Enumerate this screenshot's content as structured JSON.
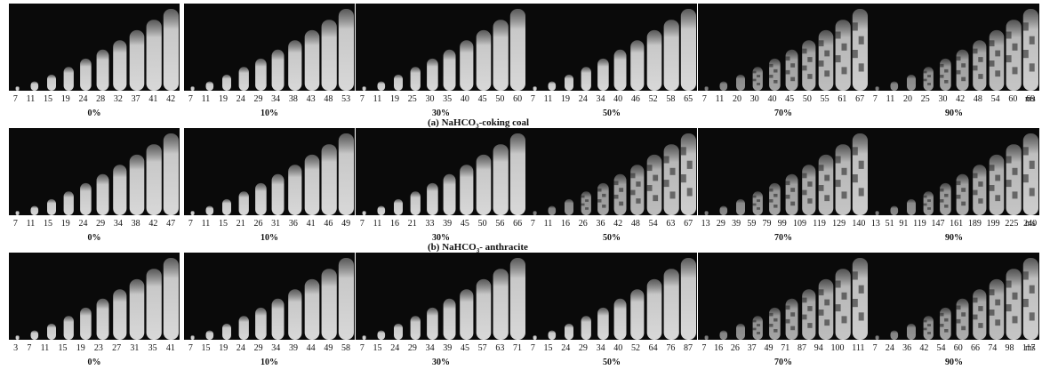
{
  "unit_label": "ms",
  "rows": [
    {
      "caption_prefix": "(a) NaHCO",
      "caption_sub": "3",
      "caption_suffix": "-coking coal",
      "panels": [
        {
          "pct": "0%",
          "ticks": [
            "7",
            "11",
            "15",
            "19",
            "24",
            "28",
            "32",
            "37",
            "41",
            "42"
          ]
        },
        {
          "pct": "10%",
          "ticks": [
            "7",
            "11",
            "19",
            "24",
            "29",
            "34",
            "38",
            "43",
            "48",
            "53"
          ]
        },
        {
          "pct": "30%",
          "ticks": [
            "7",
            "11",
            "19",
            "25",
            "30",
            "35",
            "40",
            "45",
            "50",
            "60"
          ]
        },
        {
          "pct": "50%",
          "ticks": [
            "7",
            "11",
            "19",
            "24",
            "34",
            "40",
            "46",
            "52",
            "58",
            "65"
          ]
        },
        {
          "pct": "70%",
          "ticks": [
            "7",
            "11",
            "20",
            "30",
            "40",
            "45",
            "50",
            "55",
            "61",
            "67"
          ]
        },
        {
          "pct": "90%",
          "ticks": [
            "7",
            "11",
            "20",
            "25",
            "30",
            "42",
            "48",
            "54",
            "60",
            "69"
          ]
        }
      ]
    },
    {
      "caption_prefix": "(b) NaHCO",
      "caption_sub": "3",
      "caption_suffix": "- anthracite",
      "panels": [
        {
          "pct": "0%",
          "ticks": [
            "7",
            "11",
            "15",
            "19",
            "24",
            "29",
            "34",
            "38",
            "42",
            "47"
          ]
        },
        {
          "pct": "10%",
          "ticks": [
            "7",
            "11",
            "15",
            "21",
            "26",
            "31",
            "36",
            "41",
            "46",
            "49"
          ]
        },
        {
          "pct": "30%",
          "ticks": [
            "7",
            "11",
            "16",
            "21",
            "33",
            "39",
            "45",
            "50",
            "56",
            "66"
          ]
        },
        {
          "pct": "50%",
          "ticks": [
            "7",
            "11",
            "16",
            "26",
            "36",
            "42",
            "48",
            "54",
            "63",
            "67"
          ]
        },
        {
          "pct": "70%",
          "ticks": [
            "13",
            "29",
            "39",
            "59",
            "79",
            "99",
            "109",
            "119",
            "129",
            "140"
          ]
        },
        {
          "pct": "90%",
          "ticks": [
            "13",
            "51",
            "91",
            "119",
            "147",
            "161",
            "189",
            "199",
            "225",
            "240"
          ]
        }
      ]
    },
    {
      "caption_prefix": "",
      "caption_sub": "",
      "caption_suffix": "",
      "panels": [
        {
          "pct": "0%",
          "ticks": [
            "3",
            "7",
            "11",
            "15",
            "19",
            "23",
            "27",
            "31",
            "35",
            "41"
          ]
        },
        {
          "pct": "10%",
          "ticks": [
            "7",
            "15",
            "19",
            "24",
            "29",
            "34",
            "39",
            "44",
            "49",
            "58"
          ]
        },
        {
          "pct": "30%",
          "ticks": [
            "7",
            "15",
            "24",
            "29",
            "34",
            "39",
            "45",
            "57",
            "63",
            "71"
          ]
        },
        {
          "pct": "50%",
          "ticks": [
            "7",
            "15",
            "24",
            "29",
            "34",
            "40",
            "52",
            "64",
            "76",
            "87"
          ]
        },
        {
          "pct": "70%",
          "ticks": [
            "7",
            "16",
            "26",
            "37",
            "49",
            "71",
            "87",
            "94",
            "100",
            "111"
          ]
        },
        {
          "pct": "90%",
          "ticks": [
            "7",
            "24",
            "36",
            "42",
            "54",
            "60",
            "66",
            "74",
            "98",
            "117"
          ]
        }
      ]
    }
  ]
}
